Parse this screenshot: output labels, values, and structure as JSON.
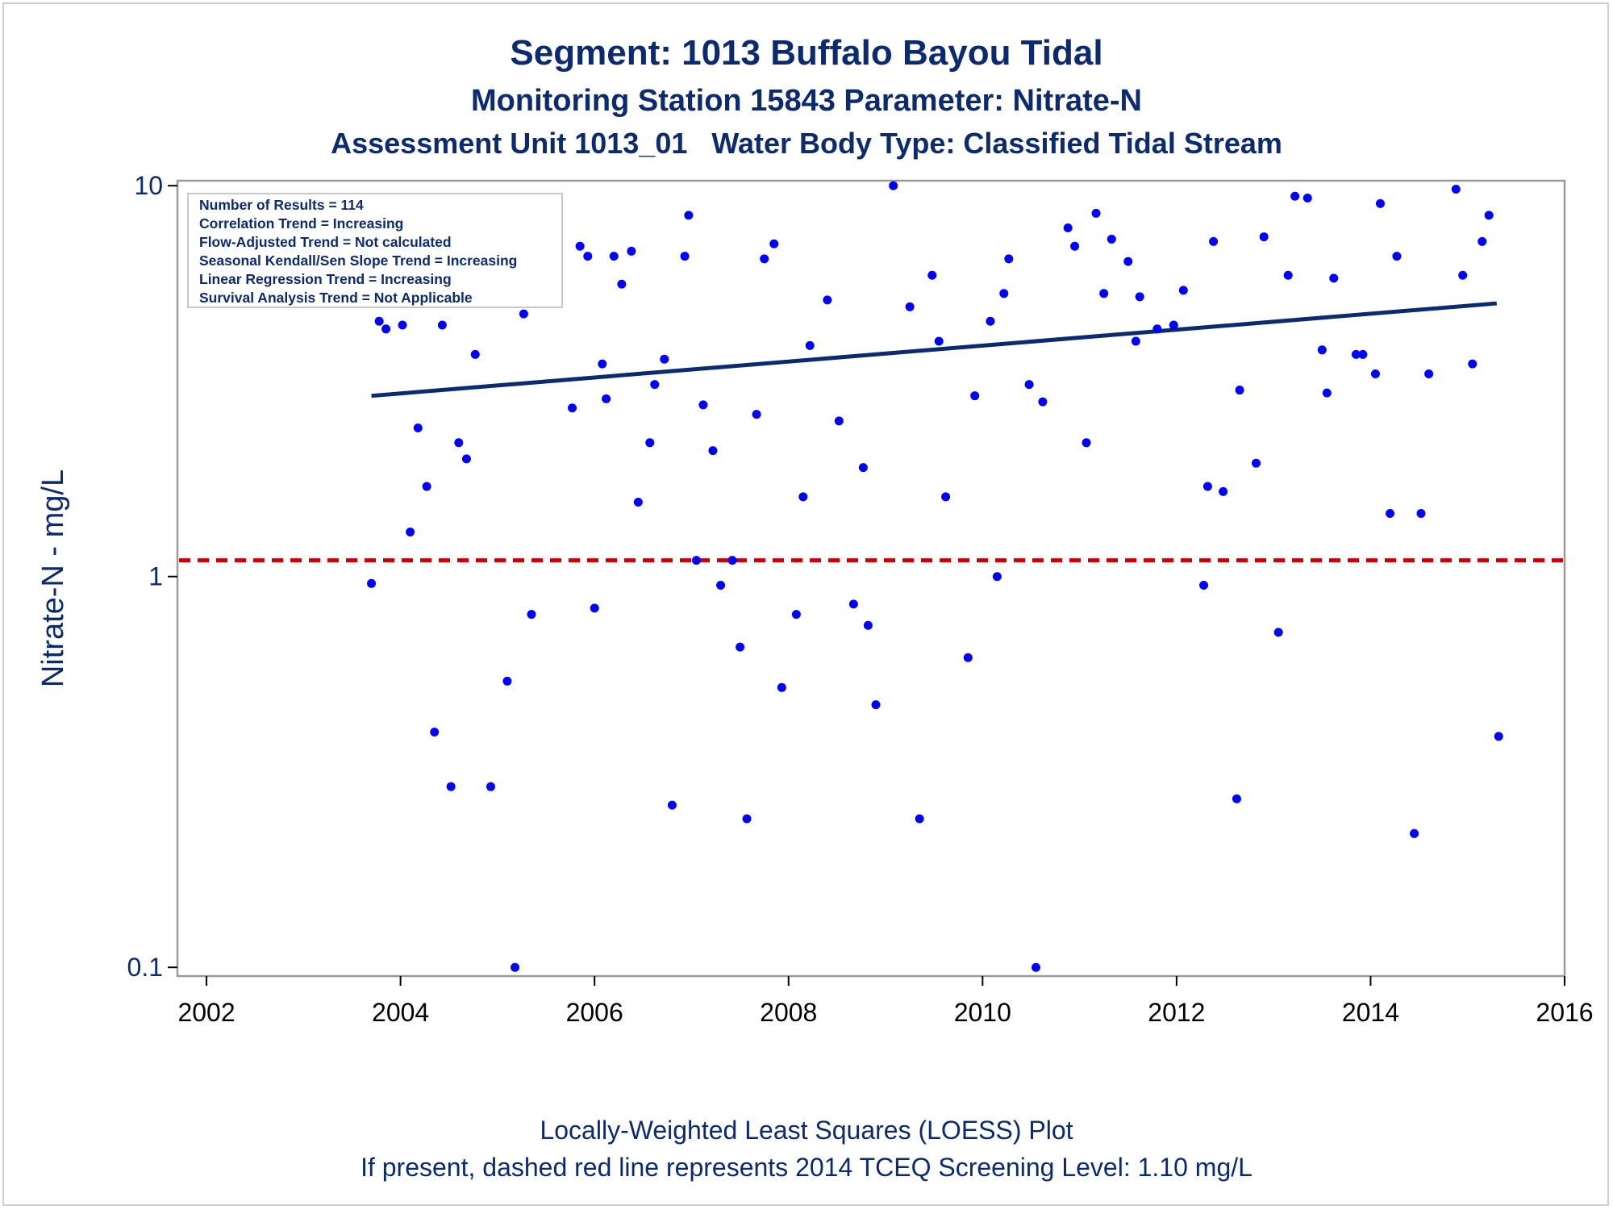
{
  "chart_data": {
    "type": "scatter",
    "title": "Segment: 1013  Buffalo Bayou Tidal",
    "subtitle": "Monitoring Station 15843 Parameter: Nitrate-N",
    "subtitle2": "Assessment Unit 1013_01   Water Body Type: Classified Tidal Stream",
    "ylabel": "Nitrate-N - mg/L",
    "xlabel": "",
    "yscale": "log",
    "xlim": [
      2001.8,
      2016.0
    ],
    "ylim": [
      0.095,
      10.3
    ],
    "x_ticks": [
      "2002",
      "2004",
      "2006",
      "2008",
      "2010",
      "2012",
      "2014",
      "2016"
    ],
    "y_ticks": [
      "0.1",
      "1",
      "10"
    ],
    "grid": false,
    "stats": [
      "Number of Results = 114",
      "Correlation Trend = Increasing",
      "Flow-Adjusted Trend = Not calculated",
      "Seasonal Kendall/Sen Slope Trend = Increasing",
      "Linear Regression Trend = Increasing",
      "Survival Analysis Trend = Not Applicable"
    ],
    "trend_line": {
      "x": [
        2003.7,
        2015.3
      ],
      "y": [
        2.9,
        5.0
      ],
      "color": "#0b2a6f"
    },
    "screening_level": {
      "y": 1.1,
      "color": "#cc0000",
      "style": "dashed"
    },
    "point_color": "#0000ff",
    "points": [
      [
        2003.7,
        0.96
      ],
      [
        2003.78,
        4.5
      ],
      [
        2003.85,
        4.3
      ],
      [
        2003.93,
        6.6
      ],
      [
        2004.02,
        4.4
      ],
      [
        2004.1,
        1.3
      ],
      [
        2004.18,
        2.4
      ],
      [
        2004.27,
        1.7
      ],
      [
        2004.35,
        0.4
      ],
      [
        2004.43,
        4.4
      ],
      [
        2004.52,
        0.29
      ],
      [
        2004.6,
        2.2
      ],
      [
        2004.68,
        2.0
      ],
      [
        2004.77,
        3.7
      ],
      [
        2004.85,
        7.2
      ],
      [
        2004.93,
        0.29
      ],
      [
        2005.02,
        5.8
      ],
      [
        2005.1,
        0.54
      ],
      [
        2005.18,
        0.1
      ],
      [
        2005.27,
        4.7
      ],
      [
        2005.35,
        0.8
      ],
      [
        2005.77,
        2.7
      ],
      [
        2005.85,
        7.0
      ],
      [
        2005.93,
        6.6
      ],
      [
        2006.0,
        0.83
      ],
      [
        2006.08,
        3.5
      ],
      [
        2006.12,
        2.85
      ],
      [
        2006.2,
        6.6
      ],
      [
        2006.28,
        5.6
      ],
      [
        2006.38,
        6.8
      ],
      [
        2006.45,
        1.55
      ],
      [
        2006.57,
        2.2
      ],
      [
        2006.62,
        3.1
      ],
      [
        2006.72,
        3.6
      ],
      [
        2006.8,
        0.26
      ],
      [
        2006.93,
        6.6
      ],
      [
        2006.97,
        8.4
      ],
      [
        2007.05,
        1.1
      ],
      [
        2007.12,
        2.75
      ],
      [
        2007.22,
        2.1
      ],
      [
        2007.3,
        0.95
      ],
      [
        2007.42,
        1.1
      ],
      [
        2007.5,
        0.66
      ],
      [
        2007.57,
        0.24
      ],
      [
        2007.67,
        2.6
      ],
      [
        2007.75,
        6.5
      ],
      [
        2007.85,
        7.1
      ],
      [
        2007.93,
        0.52
      ],
      [
        2008.08,
        0.8
      ],
      [
        2008.15,
        1.6
      ],
      [
        2008.22,
        3.9
      ],
      [
        2008.4,
        5.1
      ],
      [
        2008.52,
        2.5
      ],
      [
        2008.67,
        0.85
      ],
      [
        2008.77,
        1.9
      ],
      [
        2008.82,
        0.75
      ],
      [
        2008.9,
        0.47
      ],
      [
        2009.08,
        10.0
      ],
      [
        2009.25,
        4.9
      ],
      [
        2009.35,
        0.24
      ],
      [
        2009.48,
        5.9
      ],
      [
        2009.55,
        4.0
      ],
      [
        2009.62,
        1.6
      ],
      [
        2009.85,
        0.62
      ],
      [
        2009.92,
        2.9
      ],
      [
        2010.08,
        4.5
      ],
      [
        2010.15,
        1.0
      ],
      [
        2010.22,
        5.3
      ],
      [
        2010.27,
        6.5
      ],
      [
        2010.48,
        3.1
      ],
      [
        2010.55,
        0.1
      ],
      [
        2010.62,
        2.8
      ],
      [
        2010.88,
        7.8
      ],
      [
        2010.95,
        7.0
      ],
      [
        2011.07,
        2.2
      ],
      [
        2011.17,
        8.5
      ],
      [
        2011.25,
        5.3
      ],
      [
        2011.33,
        7.3
      ],
      [
        2011.5,
        6.4
      ],
      [
        2011.58,
        4.0
      ],
      [
        2011.62,
        5.2
      ],
      [
        2011.8,
        4.3
      ],
      [
        2011.97,
        4.4
      ],
      [
        2012.07,
        5.4
      ],
      [
        2012.28,
        0.95
      ],
      [
        2012.32,
        1.7
      ],
      [
        2012.38,
        7.2
      ],
      [
        2012.48,
        1.65
      ],
      [
        2012.62,
        0.27
      ],
      [
        2012.65,
        3.0
      ],
      [
        2012.82,
        1.95
      ],
      [
        2012.9,
        7.4
      ],
      [
        2013.05,
        0.72
      ],
      [
        2013.15,
        5.9
      ],
      [
        2013.22,
        9.4
      ],
      [
        2013.35,
        9.3
      ],
      [
        2013.5,
        3.8
      ],
      [
        2013.55,
        2.95
      ],
      [
        2013.62,
        5.8
      ],
      [
        2013.85,
        3.7
      ],
      [
        2013.92,
        3.7
      ],
      [
        2014.05,
        3.3
      ],
      [
        2014.1,
        9.0
      ],
      [
        2014.2,
        1.45
      ],
      [
        2014.27,
        6.6
      ],
      [
        2014.45,
        0.22
      ],
      [
        2014.52,
        1.45
      ],
      [
        2014.6,
        3.3
      ],
      [
        2014.88,
        9.8
      ],
      [
        2014.95,
        5.9
      ],
      [
        2015.05,
        3.5
      ],
      [
        2015.15,
        7.2
      ],
      [
        2015.22,
        8.4
      ],
      [
        2015.32,
        0.39
      ]
    ],
    "footnote1": "Locally-Weighted Least Squares (LOESS) Plot",
    "footnote2": "If present, dashed red line represents 2014 TCEQ Screening Level: 1.10 mg/L"
  }
}
